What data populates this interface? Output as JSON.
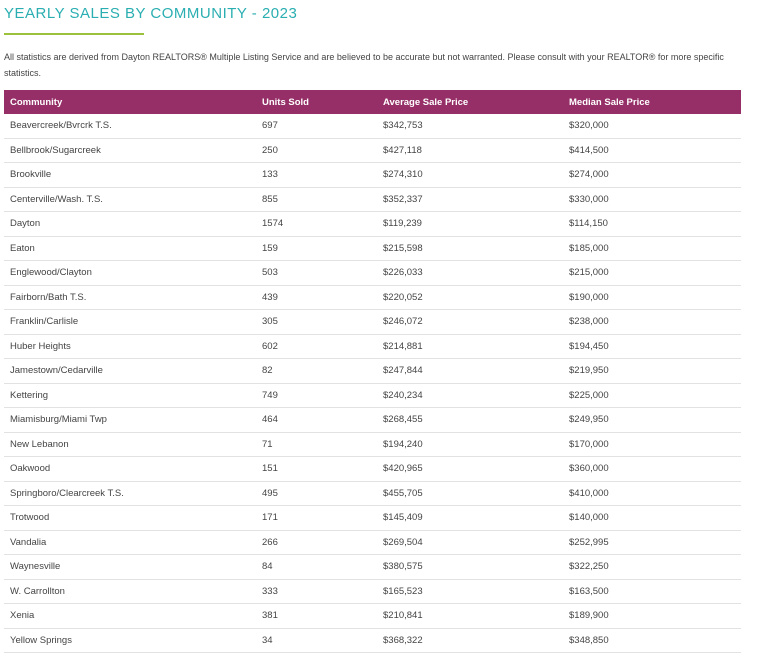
{
  "page": {
    "title": "YEARLY SALES BY COMMUNITY - 2023",
    "disclaimer": "All statistics are derived from Dayton REALTORS® Multiple Listing Service and are believed to be accurate but not warranted. Please consult with your REALTOR® for more specific statistics."
  },
  "table": {
    "headers": [
      "Community",
      "Units Sold",
      "Average Sale Price",
      "Median Sale Price"
    ],
    "rows": [
      [
        "Beavercreek/Bvrcrk T.S.",
        "697",
        "$342,753",
        "$320,000"
      ],
      [
        "Bellbrook/Sugarcreek",
        "250",
        "$427,118",
        "$414,500"
      ],
      [
        "Brookville",
        "133",
        "$274,310",
        "$274,000"
      ],
      [
        "Centerville/Wash. T.S.",
        "855",
        "$352,337",
        "$330,000"
      ],
      [
        "Dayton",
        "1574",
        "$119,239",
        "$114,150"
      ],
      [
        "Eaton",
        "159",
        "$215,598",
        "$185,000"
      ],
      [
        "Englewood/Clayton",
        "503",
        "$226,033",
        "$215,000"
      ],
      [
        "Fairborn/Bath T.S.",
        "439",
        "$220,052",
        "$190,000"
      ],
      [
        "Franklin/Carlisle",
        "305",
        "$246,072",
        "$238,000"
      ],
      [
        "Huber Heights",
        "602",
        "$214,881",
        "$194,450"
      ],
      [
        "Jamestown/Cedarville",
        "82",
        "$247,844",
        "$219,950"
      ],
      [
        "Kettering",
        "749",
        "$240,234",
        "$225,000"
      ],
      [
        "Miamisburg/Miami Twp",
        "464",
        "$268,455",
        "$249,950"
      ],
      [
        "New Lebanon",
        "71",
        "$194,240",
        "$170,000"
      ],
      [
        "Oakwood",
        "151",
        "$420,965",
        "$360,000"
      ],
      [
        "Springboro/Clearcreek T.S.",
        "495",
        "$455,705",
        "$410,000"
      ],
      [
        "Trotwood",
        "171",
        "$145,409",
        "$140,000"
      ],
      [
        "Vandalia",
        "266",
        "$269,504",
        "$252,995"
      ],
      [
        "Waynesville",
        "84",
        "$380,575",
        "$322,250"
      ],
      [
        "W. Carrollton",
        "333",
        "$165,523",
        "$163,500"
      ],
      [
        "Xenia",
        "381",
        "$210,841",
        "$189,900"
      ],
      [
        "Yellow Springs",
        "34",
        "$368,322",
        "$348,850"
      ]
    ]
  },
  "colors": {
    "title": "#2aaeb1",
    "underline": "#9cc23c",
    "header_bg": "#962f67",
    "header_text": "#ffffff"
  }
}
